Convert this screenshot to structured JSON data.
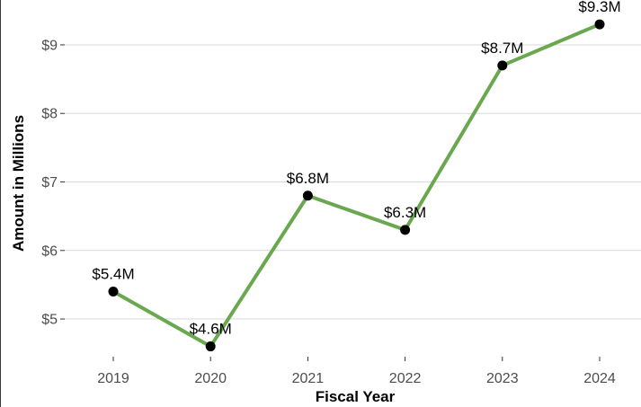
{
  "chart_data": {
    "type": "line",
    "categories": [
      "2019",
      "2020",
      "2021",
      "2022",
      "2023",
      "2024"
    ],
    "values": [
      5.4,
      4.6,
      6.8,
      6.3,
      8.7,
      9.3
    ],
    "data_labels": [
      "$5.4M",
      "$4.6M",
      "$6.8M",
      "$6.3M",
      "$8.7M",
      "$9.3M"
    ],
    "title": "",
    "xlabel": "Fiscal Year",
    "ylabel": "Amount in Millions",
    "yticks": [
      5,
      6,
      7,
      8,
      9
    ],
    "ytick_labels": [
      "$5",
      "$6",
      "$7",
      "$8",
      "$9"
    ],
    "ylim": [
      4.45,
      9.55
    ],
    "grid": "horizontal",
    "legend": "none",
    "line_color": "#6aa84f",
    "point_color": "#000000"
  }
}
